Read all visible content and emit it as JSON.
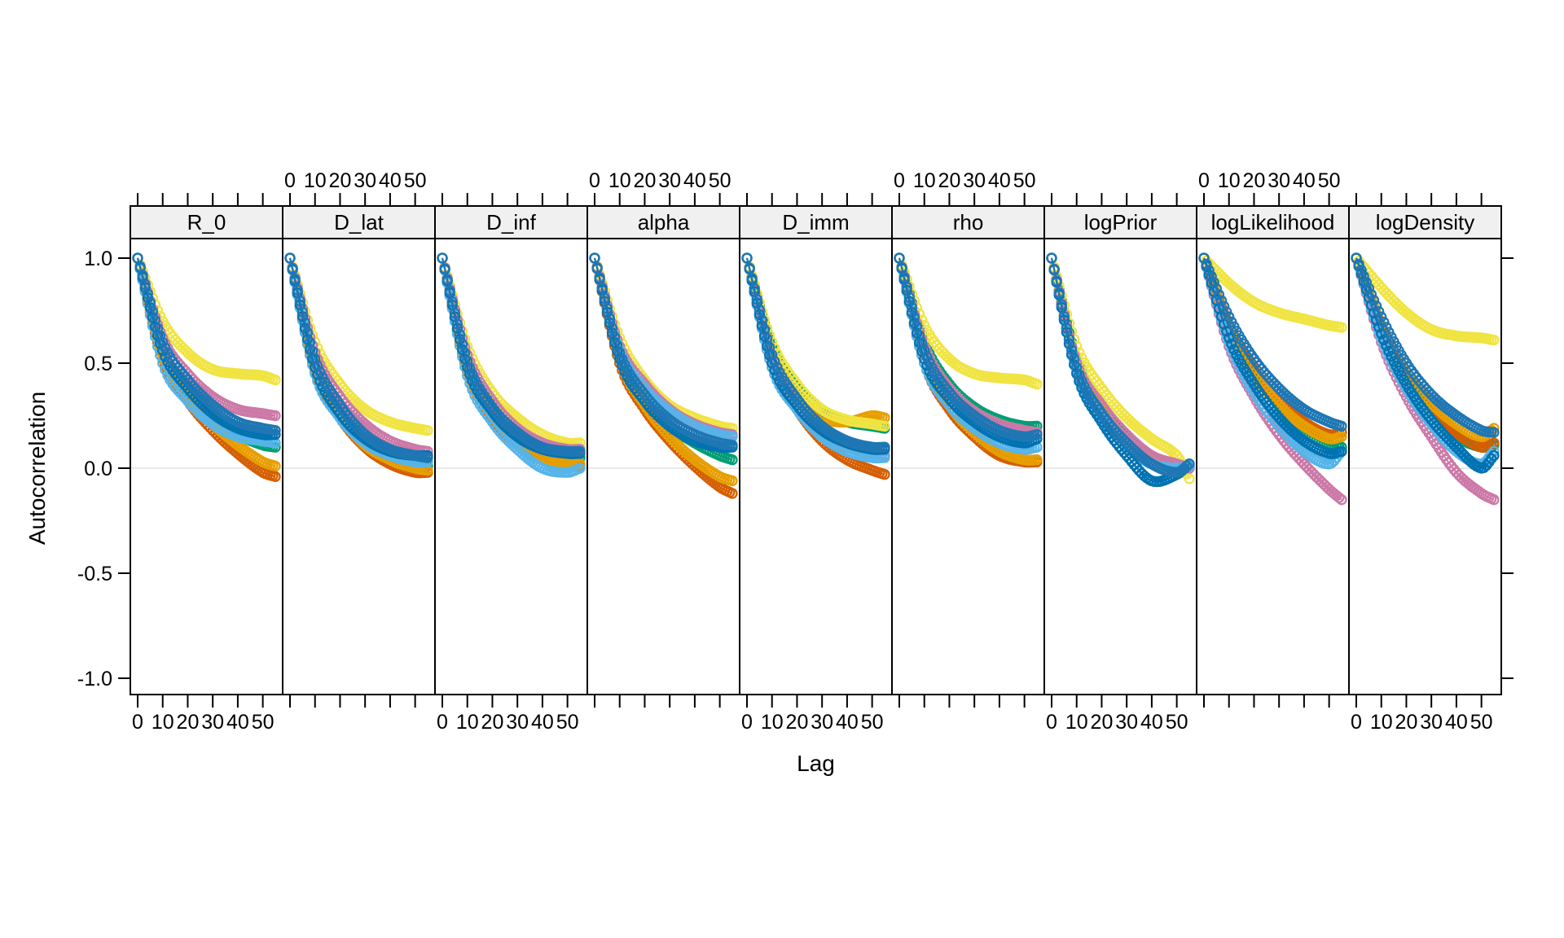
{
  "chart_data": {
    "type": "scatter",
    "title": "",
    "subtitle": "",
    "xlabel": "Lag",
    "ylabel": "Autocorrelation",
    "legend": "none",
    "grid": "zero-reference-line-only",
    "zero_line_color": "#e8e8e8",
    "panel_header_fill": "#f0f0f0",
    "border_color": "#000000",
    "xlim": [
      -3,
      58
    ],
    "ylim": [
      -1.08,
      1.09
    ],
    "max_lag": 55,
    "x_ticks": [
      {
        "label": "0",
        "value": 0
      },
      {
        "label": "10",
        "value": 10
      },
      {
        "label": "20",
        "value": 20
      },
      {
        "label": "30",
        "value": 30
      },
      {
        "label": "40",
        "value": 40
      },
      {
        "label": "50",
        "value": 50
      }
    ],
    "y_ticks": [
      {
        "label": "1.0",
        "value": 1.0
      },
      {
        "label": "0.5",
        "value": 0.5
      },
      {
        "label": "0.0",
        "value": 0.0
      },
      {
        "label": "-0.5",
        "value": -0.5
      },
      {
        "label": "-1.0",
        "value": -1.0
      }
    ],
    "top_axis_panel_indices": [
      1,
      3,
      5,
      7
    ],
    "bottom_axis_panel_indices": [
      0,
      2,
      4,
      6,
      8
    ],
    "control_lags": [
      0,
      10,
      20,
      30,
      40,
      50,
      55
    ],
    "chains": [
      {
        "id": "green",
        "color": "#009E73"
      },
      {
        "id": "vermillion",
        "color": "#D55E00"
      },
      {
        "id": "orange",
        "color": "#E69F00"
      },
      {
        "id": "yellow",
        "color": "#F0E442"
      },
      {
        "id": "pink",
        "color": "#CC79A7"
      },
      {
        "id": "sky",
        "color": "#56B4E9"
      },
      {
        "id": "blue-2",
        "color": "#0072B2"
      },
      {
        "id": "blue-1",
        "color": "#1F77B4"
      }
    ],
    "panels": [
      {
        "name": "R_0",
        "values": {
          "green": [
            1,
            0.55,
            0.36,
            0.24,
            0.16,
            0.11,
            0.1
          ],
          "vermillion": [
            1,
            0.52,
            0.32,
            0.18,
            0.07,
            -0.02,
            -0.04
          ],
          "orange": [
            1,
            0.54,
            0.34,
            0.21,
            0.11,
            0.03,
            0.01
          ],
          "yellow": [
            1,
            0.7,
            0.55,
            0.47,
            0.45,
            0.44,
            0.42
          ],
          "pink": [
            1,
            0.62,
            0.45,
            0.34,
            0.28,
            0.26,
            0.25
          ],
          "sky": [
            1,
            0.5,
            0.32,
            0.21,
            0.15,
            0.13,
            0.12
          ],
          "blue-2": [
            1,
            0.56,
            0.38,
            0.26,
            0.19,
            0.16,
            0.16
          ],
          "blue-1": [
            1,
            0.6,
            0.42,
            0.3,
            0.22,
            0.19,
            0.18
          ]
        }
      },
      {
        "name": "D_lat",
        "values": {
          "green": [
            1,
            0.5,
            0.28,
            0.14,
            0.06,
            0.02,
            0.01
          ],
          "vermillion": [
            1,
            0.46,
            0.24,
            0.1,
            0.02,
            -0.02,
            -0.02
          ],
          "orange": [
            1,
            0.47,
            0.25,
            0.11,
            0.04,
            0.0,
            -0.01
          ],
          "yellow": [
            1,
            0.6,
            0.4,
            0.28,
            0.22,
            0.19,
            0.18
          ],
          "pink": [
            1,
            0.55,
            0.34,
            0.21,
            0.13,
            0.09,
            0.08
          ],
          "sky": [
            1,
            0.45,
            0.24,
            0.12,
            0.06,
            0.03,
            0.03
          ],
          "blue-2": [
            1,
            0.48,
            0.26,
            0.14,
            0.08,
            0.06,
            0.06
          ],
          "blue-1": [
            1,
            0.52,
            0.3,
            0.16,
            0.09,
            0.06,
            0.05
          ]
        }
      },
      {
        "name": "D_inf",
        "values": {
          "green": [
            1,
            0.5,
            0.27,
            0.14,
            0.08,
            0.05,
            0.05
          ],
          "vermillion": [
            1,
            0.46,
            0.24,
            0.11,
            0.04,
            0.01,
            0.01
          ],
          "orange": [
            1,
            0.47,
            0.25,
            0.12,
            0.05,
            0.02,
            0.02
          ],
          "yellow": [
            1,
            0.58,
            0.36,
            0.24,
            0.16,
            0.12,
            0.12
          ],
          "pink": [
            1,
            0.54,
            0.32,
            0.19,
            0.12,
            0.09,
            0.09
          ],
          "sky": [
            1,
            0.44,
            0.22,
            0.09,
            0.0,
            -0.02,
            0.0
          ],
          "blue-2": [
            1,
            0.48,
            0.27,
            0.15,
            0.09,
            0.07,
            0.07
          ],
          "blue-1": [
            1,
            0.51,
            0.29,
            0.17,
            0.1,
            0.08,
            0.08
          ]
        }
      },
      {
        "name": "alpha",
        "values": {
          "green": [
            1,
            0.54,
            0.33,
            0.2,
            0.12,
            0.06,
            0.04
          ],
          "vermillion": [
            1,
            0.5,
            0.28,
            0.13,
            0.01,
            -0.09,
            -0.12
          ],
          "orange": [
            1,
            0.52,
            0.3,
            0.15,
            0.04,
            -0.04,
            -0.06
          ],
          "yellow": [
            1,
            0.62,
            0.42,
            0.3,
            0.24,
            0.2,
            0.19
          ],
          "pink": [
            1,
            0.58,
            0.4,
            0.28,
            0.21,
            0.17,
            0.16
          ],
          "sky": [
            1,
            0.56,
            0.38,
            0.27,
            0.2,
            0.16,
            0.15
          ],
          "blue-2": [
            1,
            0.52,
            0.32,
            0.2,
            0.13,
            0.1,
            0.1
          ],
          "blue-1": [
            1,
            0.55,
            0.35,
            0.23,
            0.16,
            0.12,
            0.11
          ]
        }
      },
      {
        "name": "D_imm",
        "values": {
          "green": [
            1,
            0.58,
            0.38,
            0.27,
            0.22,
            0.2,
            0.19
          ],
          "vermillion": [
            1,
            0.5,
            0.28,
            0.13,
            0.04,
            -0.01,
            -0.03
          ],
          "orange": [
            1,
            0.55,
            0.35,
            0.24,
            0.22,
            0.25,
            0.24
          ],
          "yellow": [
            1,
            0.6,
            0.4,
            0.28,
            0.23,
            0.21,
            0.2
          ],
          "pink": [
            1,
            0.52,
            0.3,
            0.17,
            0.1,
            0.07,
            0.06
          ],
          "sky": [
            1,
            0.48,
            0.28,
            0.15,
            0.08,
            0.05,
            0.05
          ],
          "blue-2": [
            1,
            0.5,
            0.3,
            0.18,
            0.12,
            0.09,
            0.09
          ],
          "blue-1": [
            1,
            0.54,
            0.33,
            0.2,
            0.13,
            0.1,
            0.1
          ]
        }
      },
      {
        "name": "rho",
        "values": {
          "green": [
            1,
            0.6,
            0.4,
            0.29,
            0.23,
            0.2,
            0.2
          ],
          "vermillion": [
            1,
            0.5,
            0.28,
            0.15,
            0.06,
            0.03,
            0.03
          ],
          "orange": [
            1,
            0.52,
            0.3,
            0.17,
            0.08,
            0.04,
            0.04
          ],
          "yellow": [
            1,
            0.68,
            0.52,
            0.45,
            0.43,
            0.42,
            0.4
          ],
          "pink": [
            1,
            0.58,
            0.38,
            0.27,
            0.21,
            0.18,
            0.17
          ],
          "sky": [
            1,
            0.5,
            0.3,
            0.19,
            0.12,
            0.09,
            0.1
          ],
          "blue-2": [
            1,
            0.52,
            0.33,
            0.22,
            0.15,
            0.12,
            0.14
          ],
          "blue-1": [
            1,
            0.56,
            0.36,
            0.25,
            0.18,
            0.15,
            0.16
          ]
        }
      },
      {
        "name": "logPrior",
        "values": {
          "green": [
            1,
            0.52,
            0.3,
            0.15,
            0.05,
            0.01,
            0.0
          ],
          "vermillion": [
            1,
            0.48,
            0.26,
            0.11,
            0.03,
            0.0,
            0.01
          ],
          "orange": [
            1,
            0.5,
            0.28,
            0.13,
            0.04,
            0.01,
            0.02
          ],
          "yellow": [
            1,
            0.58,
            0.38,
            0.24,
            0.14,
            0.06,
            -0.05
          ],
          "pink": [
            1,
            0.5,
            0.3,
            0.16,
            0.06,
            0.02,
            0.0
          ],
          "sky": [
            1,
            0.46,
            0.24,
            0.1,
            0.02,
            0.0,
            0.01
          ],
          "blue-2": [
            1,
            0.45,
            0.22,
            0.06,
            -0.06,
            -0.03,
            0.02
          ],
          "blue-1": [
            1,
            0.48,
            0.26,
            0.12,
            0.02,
            -0.02,
            0.02
          ]
        }
      },
      {
        "name": "logLikelihood",
        "values": {
          "green": [
            1,
            0.64,
            0.42,
            0.27,
            0.17,
            0.11,
            0.1
          ],
          "vermillion": [
            1,
            0.68,
            0.47,
            0.32,
            0.22,
            0.16,
            0.17
          ],
          "orange": [
            1,
            0.66,
            0.45,
            0.3,
            0.2,
            0.14,
            0.15
          ],
          "yellow": [
            1,
            0.88,
            0.79,
            0.74,
            0.71,
            0.68,
            0.67
          ],
          "pink": [
            1,
            0.58,
            0.34,
            0.16,
            0.02,
            -0.1,
            -0.15
          ],
          "sky": [
            1,
            0.6,
            0.36,
            0.2,
            0.08,
            0.02,
            0.08
          ],
          "blue-2": [
            1,
            0.62,
            0.4,
            0.24,
            0.13,
            0.07,
            0.08
          ],
          "blue-1": [
            1,
            0.72,
            0.52,
            0.38,
            0.28,
            0.22,
            0.2
          ]
        }
      },
      {
        "name": "logDensity",
        "values": {
          "green": [
            1,
            0.65,
            0.42,
            0.26,
            0.15,
            0.1,
            0.11
          ],
          "vermillion": [
            1,
            0.66,
            0.44,
            0.28,
            0.17,
            0.1,
            0.12
          ],
          "orange": [
            1,
            0.68,
            0.46,
            0.31,
            0.21,
            0.15,
            0.19
          ],
          "yellow": [
            1,
            0.86,
            0.74,
            0.66,
            0.63,
            0.62,
            0.61
          ],
          "pink": [
            1,
            0.6,
            0.34,
            0.15,
            -0.02,
            -0.12,
            -0.15
          ],
          "sky": [
            1,
            0.62,
            0.38,
            0.21,
            0.08,
            0.02,
            0.08
          ],
          "blue-2": [
            1,
            0.64,
            0.4,
            0.23,
            0.1,
            0.0,
            0.06
          ],
          "blue-1": [
            1,
            0.72,
            0.5,
            0.35,
            0.25,
            0.18,
            0.17
          ]
        }
      }
    ]
  }
}
